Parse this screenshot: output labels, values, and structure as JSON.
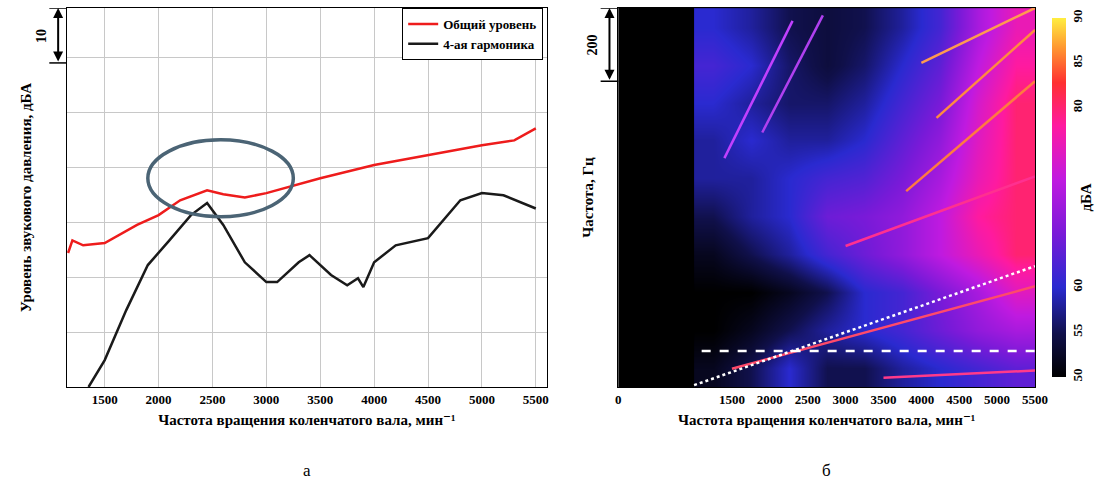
{
  "chart_data": [
    {
      "type": "line",
      "panel_label": "а",
      "x_label": "Частота вращения коленчатого вала, мин⁻¹",
      "y_label": "Уровень звукового давления, дБА",
      "xlim": [
        1150,
        5600
      ],
      "xticks": [
        1500,
        2000,
        2500,
        3000,
        3500,
        4000,
        4500,
        5000,
        5500
      ],
      "ylim": [
        30,
        99
      ],
      "yticks": [
        40,
        50,
        60,
        70,
        80,
        90
      ],
      "tick_labels": "x",
      "grid": true,
      "legend": "upper right",
      "series": [
        {
          "name": "Общий уровень",
          "color": "#ee1c1c",
          "line_style": "solid",
          "x": [
            1160,
            1200,
            1300,
            1500,
            1800,
            2000,
            2200,
            2450,
            2600,
            2800,
            3000,
            3500,
            4000,
            4500,
            5000,
            5300,
            5500
          ],
          "values": [
            54.4,
            56.7,
            55.8,
            56.2,
            59.5,
            61.3,
            64,
            65.8,
            65.1,
            64.5,
            65.3,
            68,
            70.4,
            72.2,
            74,
            74.9,
            77.1
          ]
        },
        {
          "name": "4-ая гармоника",
          "color": "#1a1a1a",
          "line_style": "solid",
          "x": [
            1350,
            1500,
            1700,
            1900,
            2100,
            2300,
            2450,
            2600,
            2800,
            3000,
            3100,
            3300,
            3400,
            3600,
            3750,
            3850,
            3900,
            4000,
            4200,
            4400,
            4500,
            4800,
            5000,
            5200,
            5500
          ],
          "values": [
            30,
            34.9,
            44,
            52.2,
            56.7,
            61.3,
            63.5,
            59.5,
            52.7,
            49.1,
            49.1,
            52.7,
            54,
            50.4,
            48.5,
            49.8,
            48.2,
            52.7,
            55.8,
            56.7,
            57.1,
            64,
            65.3,
            64.9,
            62.5
          ]
        }
      ],
      "annotations": [
        {
          "text": "10",
          "span": 10
        }
      ],
      "shapes": [
        {
          "type": "ellipse",
          "x": [
            1900,
            3250
          ],
          "y": [
            61,
            75
          ],
          "color": "#4b6475"
        }
      ]
    },
    {
      "type": "heatmap",
      "panel_label": "б",
      "x_label": "Частота вращения коленчатого вала, мин⁻¹",
      "y_label": "Частота, Гц",
      "xlim": [
        0,
        5500
      ],
      "xticks": [
        0,
        1500,
        2000,
        2500,
        3000,
        3500,
        4000,
        4500,
        5000,
        5500
      ],
      "ylim": [
        65,
        1100
      ],
      "tick_labels": "x",
      "grid": false,
      "cells": {
        "x": [
          1250,
          1750,
          2250,
          2750,
          3250,
          3750,
          4250,
          4750,
          5250
        ],
        "y": [
          117,
          220,
          324,
          427,
          531,
          634,
          738,
          841,
          945,
          1048
        ],
        "z": [
          [
            52,
            55,
            60,
            55,
            55,
            58,
            60,
            62,
            64
          ],
          [
            50,
            52,
            55,
            58,
            60,
            62,
            65,
            68,
            70
          ],
          [
            50,
            50,
            52,
            55,
            60,
            62,
            66,
            70,
            75
          ],
          [
            52,
            55,
            58,
            62,
            65,
            68,
            72,
            76,
            80
          ],
          [
            55,
            58,
            60,
            65,
            66,
            68,
            72,
            78,
            80
          ],
          [
            58,
            58,
            60,
            62,
            63,
            66,
            70,
            76,
            80
          ],
          [
            58,
            60,
            58,
            58,
            60,
            64,
            68,
            75,
            80
          ],
          [
            60,
            58,
            56,
            56,
            58,
            62,
            66,
            74,
            80
          ],
          [
            62,
            60,
            56,
            54,
            56,
            60,
            64,
            72,
            78
          ],
          [
            60,
            58,
            55,
            54,
            55,
            58,
            62,
            70,
            76
          ]
        ]
      },
      "colorbar": {
        "range": [
          50,
          90
        ],
        "ticks": [
          50,
          55,
          60,
          80,
          85,
          90
        ],
        "title": "дБА"
      },
      "series": [
        {
          "type": "line",
          "color": "#ff4a6a",
          "line_style": "solid",
          "x": [
            1500,
            5500
          ],
          "values": [
            115,
            340
          ]
        },
        {
          "type": "line",
          "color": "#ff3a8a",
          "line_style": "solid",
          "x": [
            3500,
            5500
          ],
          "values": [
            90,
            110
          ]
        },
        {
          "type": "line",
          "color": "#c040ff",
          "line_style": "solid",
          "x": [
            1400,
            2300
          ],
          "values": [
            690,
            1065
          ]
        },
        {
          "type": "line",
          "color": "#b040f0",
          "line_style": "solid",
          "x": [
            1900,
            2700
          ],
          "values": [
            760,
            1080
          ]
        },
        {
          "type": "line",
          "color": "#ff3090",
          "line_style": "solid",
          "x": [
            3000,
            5500
          ],
          "values": [
            450,
            640
          ]
        },
        {
          "type": "line",
          "color": "#ff7a40",
          "line_style": "solid",
          "x": [
            3800,
            5500
          ],
          "values": [
            600,
            900
          ]
        },
        {
          "type": "line",
          "color": "#ff8a40",
          "line_style": "solid",
          "x": [
            4200,
            5500
          ],
          "values": [
            800,
            1040
          ]
        },
        {
          "type": "line",
          "color": "#ff9a50",
          "line_style": "solid",
          "x": [
            4000,
            5500
          ],
          "values": [
            950,
            1100
          ]
        },
        {
          "type": "line",
          "color": "#ffffff",
          "line_style": "dash",
          "x": [
            1100,
            5500
          ],
          "values": [
            163,
            163
          ]
        },
        {
          "type": "line",
          "color": "#ffffff",
          "line_style": "dot",
          "x": [
            1000,
            5500
          ],
          "values": [
            70,
            395
          ]
        }
      ],
      "annotations": [
        {
          "text": "200",
          "span": 200
        }
      ]
    }
  ]
}
